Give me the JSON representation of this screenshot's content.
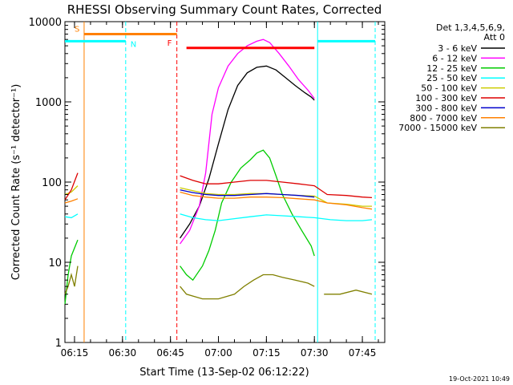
{
  "chart_data": {
    "type": "line",
    "title": "RHESSI Observing Summary Count Rates, Corrected",
    "xlabel": "Start Time (13-Sep-02 06:12:22)",
    "ylabel": "Corrected Count Rate (s⁻¹ detector⁻¹)",
    "y_scale": "log",
    "ylim": [
      1,
      10000
    ],
    "xlim": [
      "06:12",
      "07:52"
    ],
    "x_tick_labels": [
      "06:15",
      "06:30",
      "06:45",
      "07:00",
      "07:15",
      "07:30",
      "07:45"
    ],
    "y_tick_labels": [
      "1",
      "10",
      "100",
      "1000",
      "10000"
    ],
    "legend_title": [
      "Det 1,3,4,5,6,9,",
      "Att 0"
    ],
    "legend_placement": "right",
    "timestamp": "19-Oct-2021 10:49",
    "series": [
      {
        "name": "3 - 6 keV",
        "color": "#000000",
        "points": [
          [
            "06:48",
            20
          ],
          [
            "06:51",
            30
          ],
          [
            "06:54",
            50
          ],
          [
            "06:57",
            110
          ],
          [
            "07:00",
            300
          ],
          [
            "07:03",
            800
          ],
          [
            "07:06",
            1600
          ],
          [
            "07:09",
            2300
          ],
          [
            "07:12",
            2700
          ],
          [
            "07:15",
            2800
          ],
          [
            "07:18",
            2500
          ],
          [
            "07:21",
            2000
          ],
          [
            "07:24",
            1600
          ],
          [
            "07:27",
            1300
          ],
          [
            "07:29",
            1150
          ],
          [
            "07:30",
            1050
          ]
        ]
      },
      {
        "name": "6 - 12 keV",
        "color": "#ff00ff",
        "points": [
          [
            "06:48",
            17
          ],
          [
            "06:51",
            25
          ],
          [
            "06:54",
            50
          ],
          [
            "06:56",
            130
          ],
          [
            "06:58",
            700
          ],
          [
            "07:00",
            1500
          ],
          [
            "07:03",
            2800
          ],
          [
            "07:06",
            4000
          ],
          [
            "07:09",
            5000
          ],
          [
            "07:12",
            5700
          ],
          [
            "07:14",
            6000
          ],
          [
            "07:16",
            5500
          ],
          [
            "07:19",
            4000
          ],
          [
            "07:22",
            2800
          ],
          [
            "07:25",
            1900
          ],
          [
            "07:28",
            1400
          ],
          [
            "07:30",
            1100
          ]
        ]
      },
      {
        "name": "12 - 25 keV",
        "color": "#00cc00",
        "points": [
          [
            "06:12",
            3
          ],
          [
            "06:13",
            7
          ],
          [
            "06:14",
            12
          ],
          [
            "06:16",
            19
          ],
          [
            "null",
            null
          ],
          [
            "06:48",
            9
          ],
          [
            "06:50",
            7
          ],
          [
            "06:52",
            6
          ],
          [
            "06:55",
            9
          ],
          [
            "06:57",
            14
          ],
          [
            "06:59",
            25
          ],
          [
            "07:01",
            55
          ],
          [
            "07:04",
            100
          ],
          [
            "07:07",
            150
          ],
          [
            "07:10",
            190
          ],
          [
            "07:12",
            230
          ],
          [
            "07:14",
            250
          ],
          [
            "07:16",
            200
          ],
          [
            "07:18",
            120
          ],
          [
            "07:20",
            70
          ],
          [
            "07:23",
            40
          ],
          [
            "07:26",
            25
          ],
          [
            "07:29",
            16
          ],
          [
            "07:30",
            12
          ]
        ]
      },
      {
        "name": "25 - 50 keV",
        "color": "#00ffff",
        "points": [
          [
            "06:12",
            37
          ],
          [
            "06:14",
            36
          ],
          [
            "06:16",
            40
          ],
          [
            "null",
            null
          ],
          [
            "06:48",
            40
          ],
          [
            "06:52",
            36
          ],
          [
            "06:56",
            34
          ],
          [
            "07:00",
            33
          ],
          [
            "07:05",
            35
          ],
          [
            "07:10",
            37
          ],
          [
            "07:15",
            39
          ],
          [
            "07:20",
            38
          ],
          [
            "07:25",
            37
          ],
          [
            "07:30",
            36
          ],
          [
            "07:35",
            34
          ],
          [
            "07:40",
            33
          ],
          [
            "07:45",
            33
          ],
          [
            "07:48",
            34
          ]
        ]
      },
      {
        "name": "50 - 100 keV",
        "color": "#cccc00",
        "points": [
          [
            "06:12",
            70
          ],
          [
            "06:14",
            75
          ],
          [
            "06:16",
            90
          ],
          [
            "null",
            null
          ],
          [
            "06:48",
            85
          ],
          [
            "06:52",
            78
          ],
          [
            "06:56",
            72
          ],
          [
            "07:00",
            70
          ],
          [
            "07:05",
            70
          ],
          [
            "07:10",
            72
          ],
          [
            "07:15",
            72
          ],
          [
            "07:20",
            70
          ],
          [
            "07:25",
            68
          ],
          [
            "07:30",
            67
          ],
          [
            "07:34",
            55
          ],
          [
            "07:40",
            53
          ],
          [
            "07:45",
            50
          ],
          [
            "07:48",
            50
          ]
        ]
      },
      {
        "name": "100 - 300 keV",
        "color": "#dd0000",
        "points": [
          [
            "06:12",
            60
          ],
          [
            "06:14",
            80
          ],
          [
            "06:16",
            130
          ],
          [
            "null",
            null
          ],
          [
            "06:48",
            120
          ],
          [
            "06:52",
            105
          ],
          [
            "06:56",
            95
          ],
          [
            "07:00",
            95
          ],
          [
            "07:05",
            100
          ],
          [
            "07:10",
            105
          ],
          [
            "07:15",
            105
          ],
          [
            "07:20",
            100
          ],
          [
            "07:25",
            95
          ],
          [
            "07:30",
            90
          ],
          [
            "07:34",
            70
          ],
          [
            "07:40",
            68
          ],
          [
            "07:45",
            65
          ],
          [
            "07:48",
            64
          ]
        ]
      },
      {
        "name": "300 - 800 keV",
        "color": "#0000cc",
        "points": [
          [
            "06:48",
            80
          ],
          [
            "06:52",
            74
          ],
          [
            "06:56",
            70
          ],
          [
            "07:00",
            68
          ],
          [
            "07:05",
            68
          ],
          [
            "07:10",
            70
          ],
          [
            "07:15",
            72
          ],
          [
            "07:20",
            70
          ],
          [
            "07:25",
            68
          ],
          [
            "07:30",
            65
          ]
        ]
      },
      {
        "name": "800 - 7000 keV",
        "color": "#ff8000",
        "points": [
          [
            "06:12",
            55
          ],
          [
            "06:14",
            58
          ],
          [
            "06:16",
            62
          ],
          [
            "null",
            null
          ],
          [
            "06:48",
            75
          ],
          [
            "06:52",
            68
          ],
          [
            "06:56",
            65
          ],
          [
            "07:00",
            63
          ],
          [
            "07:05",
            63
          ],
          [
            "07:10",
            65
          ],
          [
            "07:15",
            65
          ],
          [
            "07:20",
            64
          ],
          [
            "07:25",
            62
          ],
          [
            "07:30",
            60
          ],
          [
            "07:34",
            55
          ],
          [
            "07:40",
            52
          ],
          [
            "07:45",
            48
          ],
          [
            "07:48",
            46
          ]
        ]
      },
      {
        "name": "7000 - 15000 keV",
        "color": "#808000",
        "points": [
          [
            "06:12",
            4
          ],
          [
            "06:13",
            5
          ],
          [
            "06:14",
            7
          ],
          [
            "06:15",
            5
          ],
          [
            "06:16",
            9
          ],
          [
            "null",
            null
          ],
          [
            "06:48",
            5
          ],
          [
            "06:50",
            4
          ],
          [
            "06:55",
            3.5
          ],
          [
            "07:00",
            3.5
          ],
          [
            "07:05",
            4
          ],
          [
            "07:08",
            5
          ],
          [
            "07:11",
            6
          ],
          [
            "07:14",
            7
          ],
          [
            "07:17",
            7
          ],
          [
            "07:20",
            6.5
          ],
          [
            "07:24",
            6
          ],
          [
            "07:28",
            5.5
          ],
          [
            "07:30",
            5
          ],
          [
            "null",
            null
          ],
          [
            "07:33",
            4
          ],
          [
            "07:38",
            4
          ],
          [
            "07:43",
            4.5
          ],
          [
            "07:48",
            4
          ]
        ]
      }
    ],
    "markers": [
      {
        "label": "S",
        "color": "#ff8000",
        "time": "06:18",
        "line_style": "solid",
        "bar": [
          "06:18",
          "06:47"
        ],
        "bar_level": 7000
      },
      {
        "label": "N",
        "color": "#00ffff",
        "time": "06:31",
        "line_style": "dashed",
        "bar": [
          "06:12",
          "06:31"
        ],
        "bar_level": 5700
      },
      {
        "label": "F",
        "color": "#ff0000",
        "time": "06:47",
        "line_style": "dashed",
        "bar": [
          "06:50",
          "07:30"
        ],
        "bar_level": 4700
      }
    ],
    "extra_verticals": [
      {
        "time": "07:31",
        "color": "#00ffff",
        "line_style": "solid"
      },
      {
        "time": "07:49",
        "color": "#00ffff",
        "line_style": "dashed"
      }
    ],
    "extra_bars": [
      {
        "color": "#00ffff",
        "bar": [
          "07:31",
          "07:49"
        ],
        "bar_level": 5700
      }
    ]
  }
}
